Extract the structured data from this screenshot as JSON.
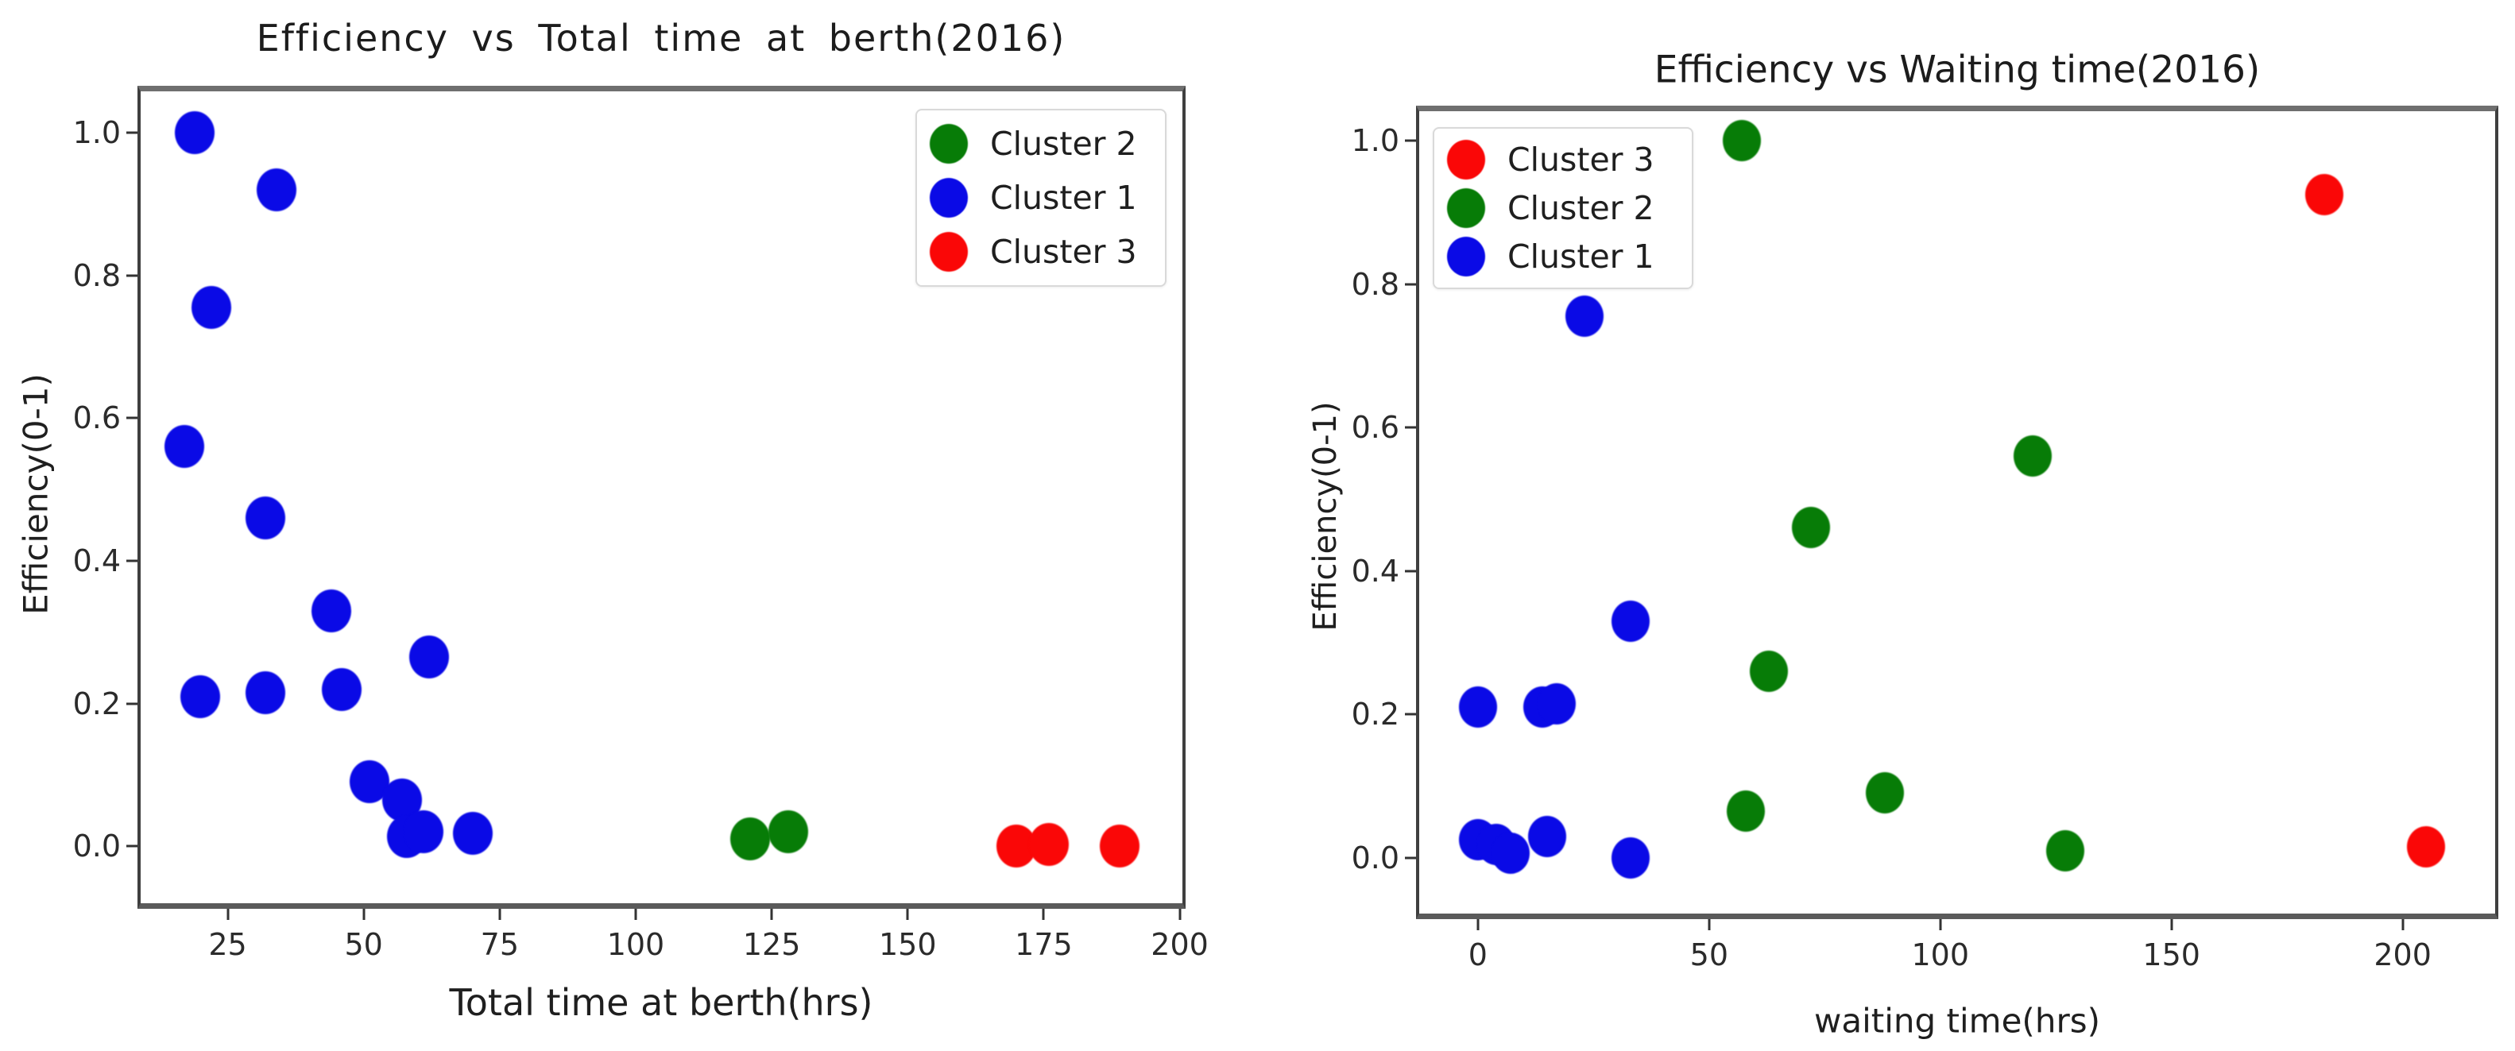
{
  "figure": {
    "background": "#ffffff"
  },
  "colors": {
    "cluster1": "#0a0ae6",
    "cluster2": "#077c07",
    "cluster3": "#fa0707",
    "tick_text": "#2b2b2b",
    "title_text": "#1c1c1c"
  },
  "charts": [
    {
      "key": "berth",
      "title": "Efficiency vs Total time at berth(2016)",
      "xlabel": "Total time at berth(hrs)",
      "ylabel": "Efficiency(0-1)",
      "chart_data": {
        "type": "scatter",
        "xlim": [
          9,
          200.5
        ],
        "ylim": [
          -0.08,
          1.058
        ],
        "grid": false,
        "x_ticks": [
          {
            "v": 25,
            "label": "25"
          },
          {
            "v": 50,
            "label": "50"
          },
          {
            "v": 75,
            "label": "75"
          },
          {
            "v": 100,
            "label": "100"
          },
          {
            "v": 125,
            "label": "125"
          },
          {
            "v": 150,
            "label": "150"
          },
          {
            "v": 175,
            "label": "175"
          },
          {
            "v": 200,
            "label": "200"
          }
        ],
        "y_ticks": [
          {
            "v": 1.0,
            "label": "1.0"
          },
          {
            "v": 0.8,
            "label": "0.8"
          },
          {
            "v": 0.6,
            "label": "0.6"
          },
          {
            "v": 0.4,
            "label": "0.4"
          },
          {
            "v": 0.2,
            "label": "0.2"
          },
          {
            "v": 0.0,
            "label": "0.0"
          }
        ],
        "legend": {
          "loc": "upper right",
          "entries": [
            {
              "label": "Cluster 2",
              "color": "cluster2"
            },
            {
              "label": "Cluster 1",
              "color": "cluster1"
            },
            {
              "label": "Cluster 3",
              "color": "cluster3"
            }
          ]
        },
        "series": [
          {
            "name": "Cluster 1",
            "color": "cluster1",
            "points": [
              [
                19,
                1.0
              ],
              [
                34,
                0.92
              ],
              [
                22,
                0.755
              ],
              [
                17,
                0.56
              ],
              [
                32,
                0.46
              ],
              [
                44,
                0.33
              ],
              [
                62,
                0.265
              ],
              [
                20,
                0.21
              ],
              [
                32,
                0.215
              ],
              [
                46,
                0.22
              ],
              [
                51,
                0.09
              ],
              [
                57,
                0.065
              ],
              [
                58,
                0.014
              ],
              [
                61,
                0.02
              ],
              [
                70,
                0.018
              ]
            ]
          },
          {
            "name": "Cluster 2",
            "color": "cluster2",
            "points": [
              [
                121,
                0.01
              ],
              [
                128,
                0.02
              ]
            ]
          },
          {
            "name": "Cluster 3",
            "color": "cluster3",
            "points": [
              [
                170,
                0.0
              ],
              [
                176,
                0.002
              ],
              [
                189,
                0.0
              ]
            ]
          }
        ]
      }
    },
    {
      "key": "waiting",
      "title": "Efficiency vs Waiting time(2016)",
      "xlabel": "waiting time(hrs)",
      "ylabel": "Efficiency(0-1)",
      "chart_data": {
        "type": "scatter",
        "xlim": [
          -12.7,
          220
        ],
        "ylim": [
          -0.078,
          1.041
        ],
        "grid": false,
        "x_ticks": [
          {
            "v": 0,
            "label": "0"
          },
          {
            "v": 50,
            "label": "50"
          },
          {
            "v": 100,
            "label": "100"
          },
          {
            "v": 150,
            "label": "150"
          },
          {
            "v": 200,
            "label": "200"
          }
        ],
        "y_ticks": [
          {
            "v": 1.0,
            "label": "1.0"
          },
          {
            "v": 0.8,
            "label": "0.8"
          },
          {
            "v": 0.6,
            "label": "0.6"
          },
          {
            "v": 0.4,
            "label": "0.4"
          },
          {
            "v": 0.2,
            "label": "0.2"
          },
          {
            "v": 0.0,
            "label": "0.0"
          }
        ],
        "legend": {
          "loc": "upper left",
          "entries": [
            {
              "label": "Cluster 3",
              "color": "cluster3"
            },
            {
              "label": "Cluster 2",
              "color": "cluster2"
            },
            {
              "label": "Cluster 1",
              "color": "cluster1"
            }
          ]
        },
        "series": [
          {
            "name": "Cluster 3",
            "color": "cluster3",
            "points": [
              [
                183,
                0.925
              ],
              [
                205,
                0.015
              ]
            ]
          },
          {
            "name": "Cluster 2",
            "color": "cluster2",
            "points": [
              [
                57,
                1.0
              ],
              [
                120,
                0.56
              ],
              [
                72,
                0.46
              ],
              [
                63,
                0.26
              ],
              [
                58,
                0.065
              ],
              [
                88,
                0.09
              ],
              [
                127,
                0.01
              ]
            ]
          },
          {
            "name": "Cluster 1",
            "color": "cluster1",
            "points": [
              [
                23,
                0.755
              ],
              [
                33,
                0.33
              ],
              [
                0,
                0.21
              ],
              [
                14,
                0.21
              ],
              [
                17,
                0.215
              ],
              [
                0,
                0.025
              ],
              [
                4,
                0.018
              ],
              [
                7,
                0.006
              ],
              [
                15,
                0.03
              ],
              [
                33,
                0.0
              ]
            ]
          }
        ]
      }
    }
  ]
}
